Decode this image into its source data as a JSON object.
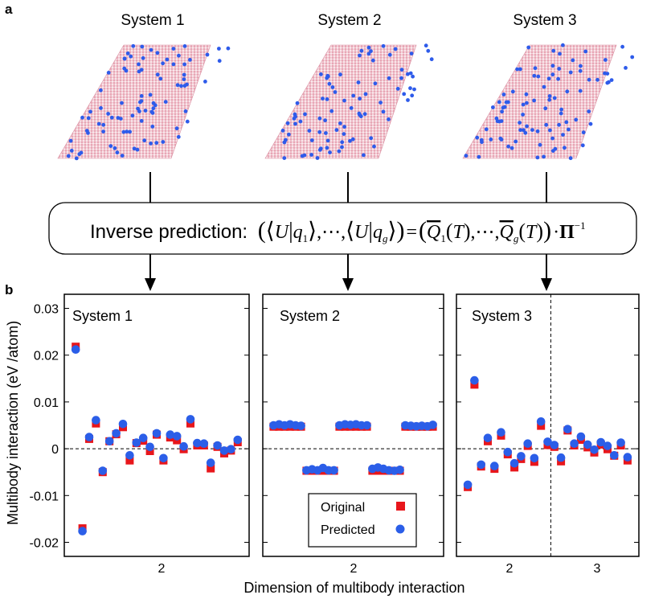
{
  "panel_labels": {
    "a": "a",
    "b": "b"
  },
  "top_row": {
    "systems": [
      {
        "title": "System 1",
        "dopant_count": 90
      },
      {
        "title": "System 2",
        "dopant_count": 90
      },
      {
        "title": "System 3",
        "dopant_count": 95
      }
    ],
    "host_color": "#e8a6b5",
    "dopant_color": "#2e5bea"
  },
  "formula": {
    "lead": "Inverse prediction:",
    "U": "U",
    "q": "q",
    "sub1": "1",
    "subg": "g",
    "ellipsis": "⋯",
    "comma": ",",
    "equals": "=",
    "Qbar": "Q",
    "T": "T",
    "dot": "·",
    "Pi": "Π",
    "pi_exp": "−1"
  },
  "chart_data": {
    "type": "scatter",
    "ylabel": "Multibody interaction (eV /atom)",
    "xlabel": "Dimension of multibody interaction",
    "ylim": [
      -0.023,
      0.033
    ],
    "yticks": [
      -0.02,
      -0.01,
      0,
      0.01,
      0.02,
      0.03
    ],
    "ytick_labels": [
      "-0.02",
      "-0.01",
      "0",
      "0.01",
      "0.02",
      "0.03"
    ],
    "legend": {
      "position": "bottom-right of System 2 panel",
      "entries": [
        {
          "label": "Original",
          "marker": "square",
          "color": "#e8161b"
        },
        {
          "label": "Predicted",
          "marker": "circle",
          "color": "#2b5ee8"
        }
      ]
    },
    "panels": [
      {
        "title": "System 1",
        "xtick_labels": [
          "2"
        ],
        "divider_after_index": null,
        "original": [
          0.0218,
          -0.017,
          0.0021,
          0.0054,
          -0.005,
          0.0016,
          0.0031,
          0.0046,
          -0.0025,
          0.0012,
          0.0017,
          -0.0005,
          0.003,
          -0.0025,
          0.0024,
          0.0018,
          -0.0001,
          0.0054,
          0.0007,
          0.0007,
          -0.0042,
          0.0004,
          -0.001,
          -0.0004,
          0.0014
        ],
        "predicted": [
          0.0212,
          -0.0176,
          0.0025,
          0.0061,
          -0.0047,
          0.0016,
          0.0033,
          0.0053,
          -0.0014,
          0.0013,
          0.0023,
          0.0004,
          0.0033,
          -0.002,
          0.003,
          0.0027,
          0.0005,
          0.0063,
          0.0012,
          0.0011,
          -0.003,
          0.0007,
          -0.0004,
          -0.0001,
          0.0019
        ]
      },
      {
        "title": "System 2",
        "xtick_labels": [
          "2"
        ],
        "divider_after_index": null,
        "original": [
          0.0047,
          0.0047,
          0.0047,
          0.0047,
          0.0047,
          0.0047,
          -0.0047,
          -0.0047,
          -0.0047,
          -0.0047,
          -0.0047,
          -0.0047,
          0.0047,
          0.0047,
          0.0047,
          0.0047,
          0.0047,
          0.0047,
          -0.0047,
          -0.0047,
          -0.0047,
          -0.0047,
          -0.0047,
          -0.0047,
          0.0047,
          0.0047,
          0.0047,
          0.0047,
          0.0047,
          0.0047
        ],
        "predicted": [
          0.005,
          0.0052,
          0.005,
          0.0052,
          0.005,
          0.0049,
          -0.0046,
          -0.0044,
          -0.0046,
          -0.0041,
          -0.0046,
          -0.0046,
          0.005,
          0.0052,
          0.0051,
          0.0052,
          0.005,
          0.005,
          -0.0043,
          -0.004,
          -0.0043,
          -0.0046,
          -0.0047,
          -0.0045,
          0.005,
          0.0049,
          0.0048,
          0.0049,
          0.0048,
          0.0051
        ]
      },
      {
        "title": "System 3",
        "xtick_labels": [
          "2",
          "3"
        ],
        "divider_after_index": 12,
        "original": [
          -0.0082,
          0.0137,
          -0.0038,
          0.0016,
          -0.0043,
          0.0028,
          -0.0012,
          -0.004,
          -0.0022,
          0.0006,
          -0.0028,
          0.0049,
          0.0008,
          0.0004,
          -0.0027,
          0.0039,
          0.0007,
          0.0019,
          0.0003,
          -0.0008,
          0.0009,
          -0.0001,
          -0.0015,
          0.0007,
          -0.0025
        ],
        "predicted": [
          -0.0077,
          0.0146,
          -0.0034,
          0.0023,
          -0.0037,
          0.0035,
          -0.0007,
          -0.0031,
          -0.0016,
          0.0011,
          -0.002,
          0.0058,
          0.0015,
          0.0008,
          -0.0019,
          0.0042,
          0.0011,
          0.0026,
          0.0009,
          -0.0002,
          0.0014,
          0.0006,
          -0.0014,
          0.0013,
          -0.0018
        ]
      }
    ]
  }
}
